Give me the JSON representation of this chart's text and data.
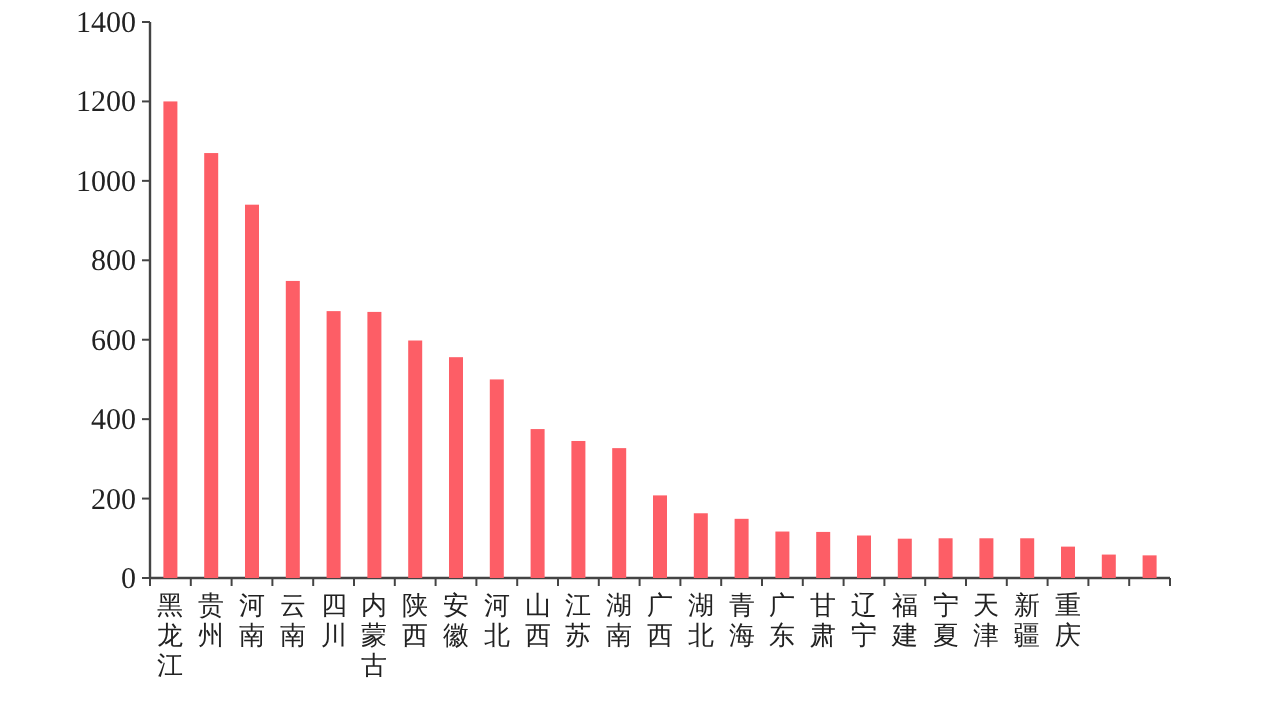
{
  "chart_data": {
    "type": "bar",
    "categories": [
      "黑龙江",
      "贵州",
      "河南",
      "云南",
      "四川",
      "内蒙古",
      "陕西",
      "安徽",
      "河北",
      "山西",
      "江苏",
      "湖南",
      "广西",
      "湖北",
      "青海",
      "广东",
      "甘肃",
      "辽宁",
      "福建",
      "宁夏",
      "天津",
      "新疆",
      "重庆",
      null,
      null
    ],
    "values": [
      1200,
      1070,
      940,
      748,
      672,
      670,
      598,
      556,
      500,
      375,
      345,
      327,
      208,
      163,
      149,
      117,
      116,
      107,
      99,
      100,
      100,
      100,
      79,
      59,
      57
    ],
    "color": "#fd5e66",
    "ylim": [
      0,
      1400
    ],
    "yticks": [
      0,
      200,
      400,
      600,
      800,
      1000,
      1200,
      1400
    ]
  }
}
